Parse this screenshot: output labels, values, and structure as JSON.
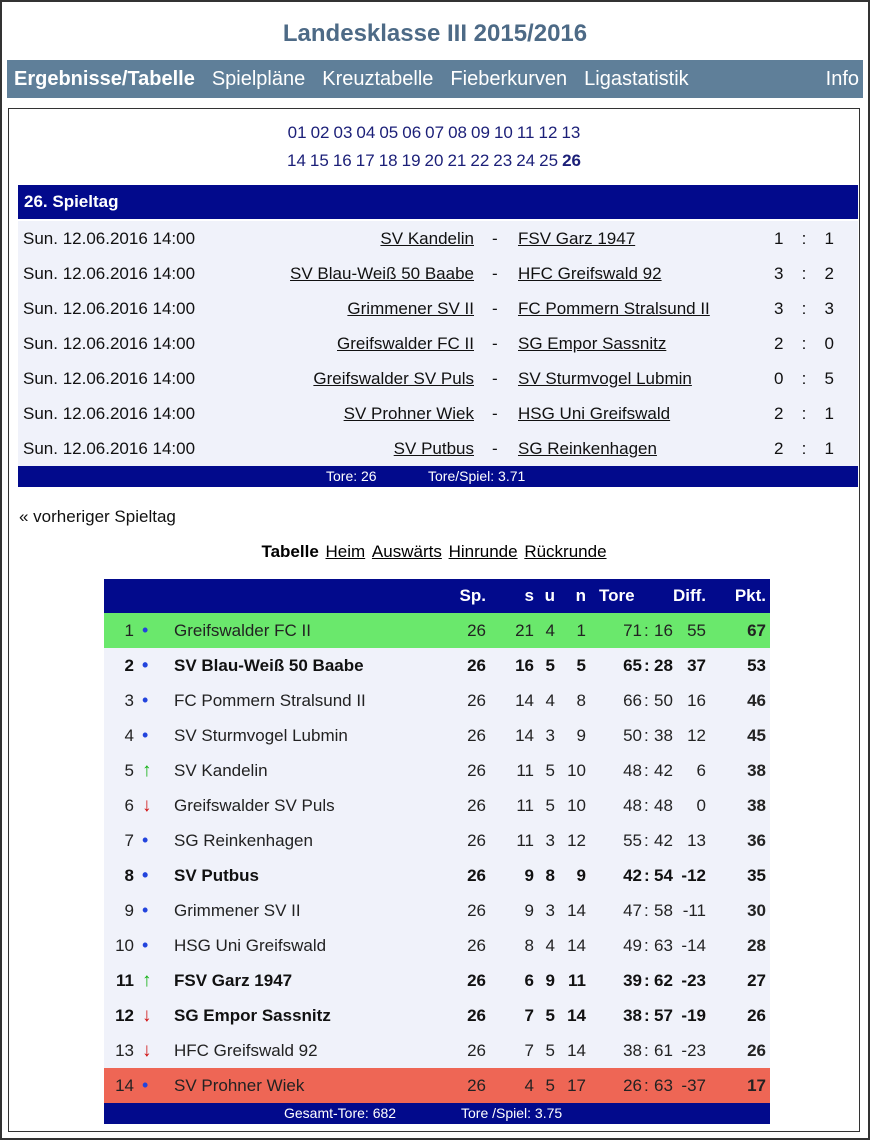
{
  "title": "Landesklasse III 2015/2016",
  "nav": [
    "Ergebnisse/Tabelle",
    "Spielpläne",
    "Kreuztabelle",
    "Fieberkurven",
    "Ligastatistik",
    "Info"
  ],
  "matchdays_row1": [
    "01",
    "02",
    "03",
    "04",
    "05",
    "06",
    "07",
    "08",
    "09",
    "10",
    "11",
    "12",
    "13"
  ],
  "matchdays_row2": [
    "14",
    "15",
    "16",
    "17",
    "18",
    "19",
    "20",
    "21",
    "22",
    "23",
    "24",
    "25",
    "26"
  ],
  "current_matchday": "26",
  "matchday_header": "26. Spieltag",
  "matches": [
    {
      "date": "Sun. 12.06.2016 14:00",
      "home": "SV Kandelin",
      "away": "FSV Garz 1947",
      "hg": "1",
      "ag": "1"
    },
    {
      "date": "Sun. 12.06.2016 14:00",
      "home": "SV Blau-Weiß 50 Baabe",
      "away": "HFC Greifswald 92",
      "hg": "3",
      "ag": "2"
    },
    {
      "date": "Sun. 12.06.2016 14:00",
      "home": "Grimmener SV II",
      "away": "FC Pommern Stralsund II",
      "hg": "3",
      "ag": "3"
    },
    {
      "date": "Sun. 12.06.2016 14:00",
      "home": "Greifswalder FC II",
      "away": "SG Empor Sassnitz",
      "hg": "2",
      "ag": "0"
    },
    {
      "date": "Sun. 12.06.2016 14:00",
      "home": "Greifswalder SV Puls",
      "away": "SV Sturmvogel Lubmin",
      "hg": "0",
      "ag": "5"
    },
    {
      "date": "Sun. 12.06.2016 14:00",
      "home": "SV Prohner Wiek",
      "away": "HSG Uni Greifswald",
      "hg": "2",
      "ag": "1"
    },
    {
      "date": "Sun. 12.06.2016 14:00",
      "home": "SV Putbus",
      "away": "SG Reinkenhagen",
      "hg": "2",
      "ag": "1"
    }
  ],
  "match_footer": {
    "goals": "Tore: 26",
    "per_game": "Tore/Spiel: 3.71"
  },
  "prev_link": "« vorheriger Spieltag",
  "table_tabs": [
    "Tabelle",
    "Heim",
    "Auswärts",
    "Hinrunde",
    "Rückrunde"
  ],
  "table_headers": {
    "sp": "Sp.",
    "s": "s",
    "u": "u",
    "n": "n",
    "tore": "Tore",
    "diff": "Diff.",
    "pkt": "Pkt."
  },
  "colors": {
    "navy": "#020a8c",
    "nav_bg": "#5f7f99",
    "promotion": "#6ae86c",
    "relegation": "#ee6655"
  },
  "standings": [
    {
      "rank": "1",
      "trend": "same",
      "team": "Greifswalder FC II",
      "sp": "26",
      "s": "21",
      "u": "4",
      "n": "1",
      "gf": "71",
      "ga": "16",
      "diff": "55",
      "pkt": "67",
      "bold": false,
      "zone": "green"
    },
    {
      "rank": "2",
      "trend": "same",
      "team": "SV Blau-Weiß 50 Baabe",
      "sp": "26",
      "s": "16",
      "u": "5",
      "n": "5",
      "gf": "65",
      "ga": "28",
      "diff": "37",
      "pkt": "53",
      "bold": true
    },
    {
      "rank": "3",
      "trend": "same",
      "team": "FC Pommern Stralsund II",
      "sp": "26",
      "s": "14",
      "u": "4",
      "n": "8",
      "gf": "66",
      "ga": "50",
      "diff": "16",
      "pkt": "46",
      "bold": false
    },
    {
      "rank": "4",
      "trend": "same",
      "team": "SV Sturmvogel Lubmin",
      "sp": "26",
      "s": "14",
      "u": "3",
      "n": "9",
      "gf": "50",
      "ga": "38",
      "diff": "12",
      "pkt": "45",
      "bold": false
    },
    {
      "rank": "5",
      "trend": "up",
      "team": "SV Kandelin",
      "sp": "26",
      "s": "11",
      "u": "5",
      "n": "10",
      "gf": "48",
      "ga": "42",
      "diff": "6",
      "pkt": "38",
      "bold": false
    },
    {
      "rank": "6",
      "trend": "down",
      "team": "Greifswalder SV Puls",
      "sp": "26",
      "s": "11",
      "u": "5",
      "n": "10",
      "gf": "48",
      "ga": "48",
      "diff": "0",
      "pkt": "38",
      "bold": false
    },
    {
      "rank": "7",
      "trend": "same",
      "team": "SG Reinkenhagen",
      "sp": "26",
      "s": "11",
      "u": "3",
      "n": "12",
      "gf": "55",
      "ga": "42",
      "diff": "13",
      "pkt": "36",
      "bold": false
    },
    {
      "rank": "8",
      "trend": "same",
      "team": "SV Putbus",
      "sp": "26",
      "s": "9",
      "u": "8",
      "n": "9",
      "gf": "42",
      "ga": "54",
      "diff": "-12",
      "pkt": "35",
      "bold": true
    },
    {
      "rank": "9",
      "trend": "same",
      "team": "Grimmener SV II",
      "sp": "26",
      "s": "9",
      "u": "3",
      "n": "14",
      "gf": "47",
      "ga": "58",
      "diff": "-11",
      "pkt": "30",
      "bold": false
    },
    {
      "rank": "10",
      "trend": "same",
      "team": "HSG Uni Greifswald",
      "sp": "26",
      "s": "8",
      "u": "4",
      "n": "14",
      "gf": "49",
      "ga": "63",
      "diff": "-14",
      "pkt": "28",
      "bold": false
    },
    {
      "rank": "11",
      "trend": "up",
      "team": "FSV Garz 1947",
      "sp": "26",
      "s": "6",
      "u": "9",
      "n": "11",
      "gf": "39",
      "ga": "62",
      "diff": "-23",
      "pkt": "27",
      "bold": true
    },
    {
      "rank": "12",
      "trend": "down",
      "team": "SG Empor Sassnitz",
      "sp": "26",
      "s": "7",
      "u": "5",
      "n": "14",
      "gf": "38",
      "ga": "57",
      "diff": "-19",
      "pkt": "26",
      "bold": true
    },
    {
      "rank": "13",
      "trend": "down",
      "team": "HFC Greifswald 92",
      "sp": "26",
      "s": "7",
      "u": "5",
      "n": "14",
      "gf": "38",
      "ga": "61",
      "diff": "-23",
      "pkt": "26",
      "bold": false
    },
    {
      "rank": "14",
      "trend": "same",
      "team": "SV Prohner Wiek",
      "sp": "26",
      "s": "4",
      "u": "5",
      "n": "17",
      "gf": "26",
      "ga": "63",
      "diff": "-37",
      "pkt": "17",
      "bold": false,
      "zone": "red"
    }
  ],
  "table_footer": {
    "goals": "Gesamt-Tore: 682",
    "per_game": "Tore /Spiel: 3.75"
  }
}
